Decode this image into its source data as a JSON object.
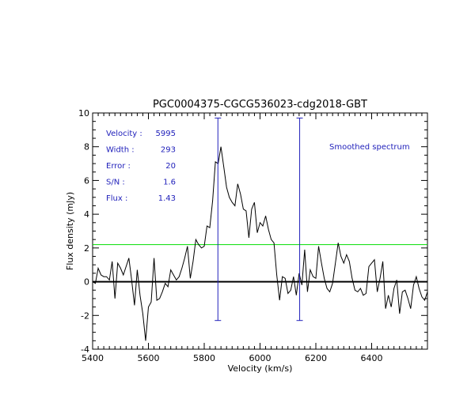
{
  "colors": {
    "background": "#ffffff",
    "axes": "#000000",
    "spectrum": "#000000",
    "zero_line": "#000000",
    "rms_line": "#00dd00",
    "marker": "#2222bb",
    "info_text": "#2222bb"
  },
  "chart_data": {
    "type": "line",
    "title": "PGC0004375-CGCG536023-cdg2018-GBT",
    "xlabel": "Velocity (km/s)",
    "ylabel": "Flux density (mJy)",
    "xlim": [
      5400,
      6600
    ],
    "ylim": [
      -4,
      10
    ],
    "xticks": [
      5400,
      5600,
      5800,
      6000,
      6200,
      6400
    ],
    "yticks": [
      -4,
      -2,
      0,
      2,
      4,
      6,
      8,
      10
    ],
    "grid": false,
    "annotation": "Smoothed spectrum",
    "info": {
      "labels": [
        "Velocity :",
        "Width :",
        "Error :",
        "S/N :",
        "Flux :"
      ],
      "values": [
        "5995",
        "293",
        "20",
        "1.6",
        "1.43"
      ]
    },
    "hlines": [
      {
        "role": "zero",
        "y": 0
      },
      {
        "role": "rms",
        "y": 2.2
      }
    ],
    "vmarkers": [
      {
        "x": 5849,
        "ymin": -2.3,
        "ymax": 9.7
      },
      {
        "x": 6142,
        "ymin": -2.3,
        "ymax": 9.7
      }
    ],
    "series": [
      {
        "x": [
          5400,
          5410,
          5420,
          5430,
          5440,
          5450,
          5460,
          5470,
          5480,
          5490,
          5500,
          5510,
          5520,
          5530,
          5540,
          5550,
          5560,
          5570,
          5580,
          5590,
          5600,
          5610,
          5620,
          5630,
          5640,
          5650,
          5660,
          5670,
          5680,
          5690,
          5700,
          5710,
          5720,
          5730,
          5740,
          5750,
          5760,
          5770,
          5780,
          5790,
          5800,
          5810,
          5820,
          5830,
          5840,
          5850,
          5860,
          5870,
          5880,
          5890,
          5900,
          5910,
          5920,
          5930,
          5940,
          5950,
          5960,
          5970,
          5980,
          5990,
          6000,
          6010,
          6020,
          6030,
          6040,
          6050,
          6060,
          6070,
          6080,
          6090,
          6100,
          6110,
          6120,
          6130,
          6140,
          6150,
          6160,
          6170,
          6180,
          6190,
          6200,
          6210,
          6220,
          6230,
          6240,
          6250,
          6260,
          6270,
          6280,
          6290,
          6300,
          6310,
          6320,
          6330,
          6340,
          6350,
          6360,
          6370,
          6380,
          6390,
          6400,
          6410,
          6420,
          6430,
          6440,
          6450,
          6460,
          6470,
          6480,
          6490,
          6500,
          6510,
          6520,
          6530,
          6540,
          6550,
          6560,
          6570,
          6580,
          6590,
          6600
        ],
        "y": [
          0,
          -0.1,
          0.8,
          0.4,
          0.3,
          0.3,
          0.1,
          1.2,
          -1.0,
          1.1,
          0.8,
          0.4,
          0.9,
          1.4,
          0.1,
          -1.4,
          0.7,
          -0.8,
          -1.9,
          -3.5,
          -1.5,
          -1.2,
          1.4,
          -1.1,
          -1.0,
          -0.6,
          -0.1,
          -0.3,
          0.7,
          0.4,
          0.1,
          0.3,
          0.8,
          1.4,
          2.1,
          0.2,
          1.2,
          2.5,
          2.2,
          2.0,
          2.1,
          3.3,
          3.2,
          4.8,
          7.1,
          7.0,
          8.0,
          6.8,
          5.6,
          5.0,
          4.7,
          4.5,
          5.8,
          5.2,
          4.3,
          4.2,
          2.6,
          4.3,
          4.7,
          2.9,
          3.5,
          3.3,
          3.9,
          3.1,
          2.5,
          2.3,
          0.4,
          -1.1,
          0.3,
          0.2,
          -0.7,
          -0.5,
          0.3,
          -0.8,
          0.5,
          -0.2,
          1.9,
          -0.6,
          0.7,
          0.3,
          0.2,
          2.1,
          1.1,
          0.2,
          -0.4,
          -0.6,
          -0.1,
          1.1,
          2.3,
          1.5,
          1.1,
          1.6,
          1.2,
          0.2,
          -0.5,
          -0.6,
          -0.4,
          -0.8,
          -0.7,
          0.9,
          1.1,
          1.3,
          -0.6,
          0.2,
          1.2,
          -1.6,
          -0.8,
          -1.5,
          -0.4,
          0.1,
          -1.9,
          -0.6,
          -0.5,
          -1.0,
          -1.6,
          -0.2,
          0.3,
          -0.4,
          -0.9,
          -1.1,
          -0.6
        ]
      }
    ]
  }
}
